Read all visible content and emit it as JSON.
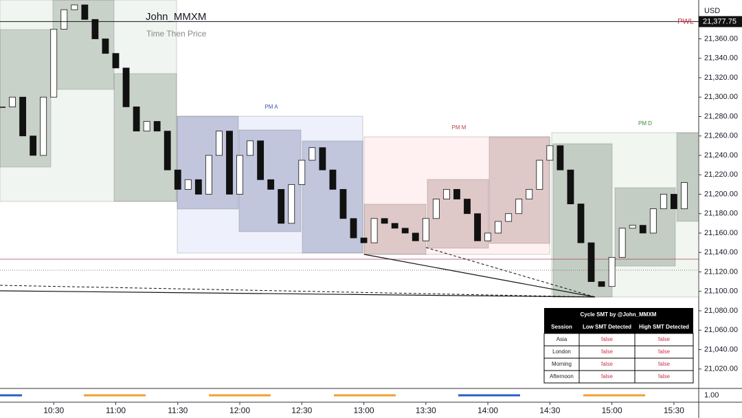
{
  "chart_data": {
    "type": "candlestick",
    "title": "John_MMXM",
    "subtitle": "Time Then Price",
    "currency": "USD",
    "x": [
      "10:05",
      "10:10",
      "10:15",
      "10:20",
      "10:25",
      "10:30",
      "10:35",
      "10:40",
      "10:45",
      "10:50",
      "10:55",
      "11:00",
      "11:05",
      "11:10",
      "11:15",
      "11:20",
      "11:25",
      "11:30",
      "11:35",
      "11:40",
      "11:45",
      "11:50",
      "11:55",
      "12:00",
      "12:05",
      "12:10",
      "12:15",
      "12:20",
      "12:25",
      "12:30",
      "12:35",
      "12:40",
      "12:45",
      "12:50",
      "12:55",
      "13:00",
      "13:05",
      "13:10",
      "13:15",
      "13:20",
      "13:25",
      "13:30",
      "13:35",
      "13:40",
      "13:45",
      "13:50",
      "13:55",
      "14:00",
      "14:05",
      "14:10",
      "14:15",
      "14:20",
      "14:25",
      "14:30",
      "14:35",
      "14:40",
      "14:45",
      "14:50",
      "14:55",
      "15:00",
      "15:05",
      "15:10",
      "15:15",
      "15:20",
      "15:25",
      "15:30",
      "15:35"
    ],
    "close": [
      21290,
      21300,
      21260,
      21240,
      21300,
      21370,
      21390,
      21395,
      21380,
      21360,
      21345,
      21330,
      21290,
      21265,
      21275,
      21265,
      21225,
      21205,
      21215,
      21200,
      21240,
      21265,
      21200,
      21240,
      21255,
      21215,
      21205,
      21170,
      21210,
      21235,
      21248,
      21225,
      21205,
      21175,
      21155,
      21150,
      21175,
      21170,
      21165,
      21160,
      21152,
      21175,
      21195,
      21205,
      21195,
      21180,
      21152,
      21160,
      21172,
      21180,
      21195,
      21205,
      21235,
      21250,
      21225,
      21190,
      21150,
      21110,
      21105,
      21135,
      21165,
      21168,
      21160,
      21185,
      21200,
      21185,
      21212
    ],
    "xlim": [
      "10:04",
      "15:42"
    ],
    "xticks": [
      "10:30",
      "11:00",
      "11:30",
      "12:00",
      "12:30",
      "13:00",
      "13:30",
      "14:00",
      "14:30",
      "15:00",
      "15:30"
    ],
    "ylim": [
      21000,
      21400
    ],
    "yticks": [
      {
        "value": 21020,
        "label": "21,020.00"
      },
      {
        "value": 21040,
        "label": "21,040.00"
      },
      {
        "value": 21060,
        "label": "21,060.00"
      },
      {
        "value": 21080,
        "label": "21,080.00"
      },
      {
        "value": 21100,
        "label": "21,100.00"
      },
      {
        "value": 21120,
        "label": "21,120.00"
      },
      {
        "value": 21140,
        "label": "21,140.00"
      },
      {
        "value": 21160,
        "label": "21,160.00"
      },
      {
        "value": 21180,
        "label": "21,180.00"
      },
      {
        "value": 21200,
        "label": "21,200.00"
      },
      {
        "value": 21220,
        "label": "21,220.00"
      },
      {
        "value": 21240,
        "label": "21,240.00"
      },
      {
        "value": 21260,
        "label": "21,260.00"
      },
      {
        "value": 21280,
        "label": "21,280.00"
      },
      {
        "value": 21300,
        "label": "21,300.00"
      },
      {
        "value": 21320,
        "label": "21,320.00"
      },
      {
        "value": 21340,
        "label": "21,340.00"
      },
      {
        "value": 21360,
        "label": "21,360.00"
      }
    ],
    "pwl": {
      "label": "PWL",
      "value": 21377.75,
      "value_label": "21,377.75"
    },
    "sessions": [
      "PM A",
      "PM M",
      "PM D"
    ],
    "indicator_label": "1.00"
  },
  "table": {
    "title": "Cycle SMT by @John_MMXM",
    "header": [
      "Session",
      "Low SMT Detected",
      "High SMT Detected"
    ],
    "rows": [
      [
        "Asia",
        "false",
        "false"
      ],
      [
        "London",
        "false",
        "false"
      ],
      [
        "Morning",
        "false",
        "false"
      ],
      [
        "Afternoon",
        "false",
        "false"
      ]
    ]
  }
}
